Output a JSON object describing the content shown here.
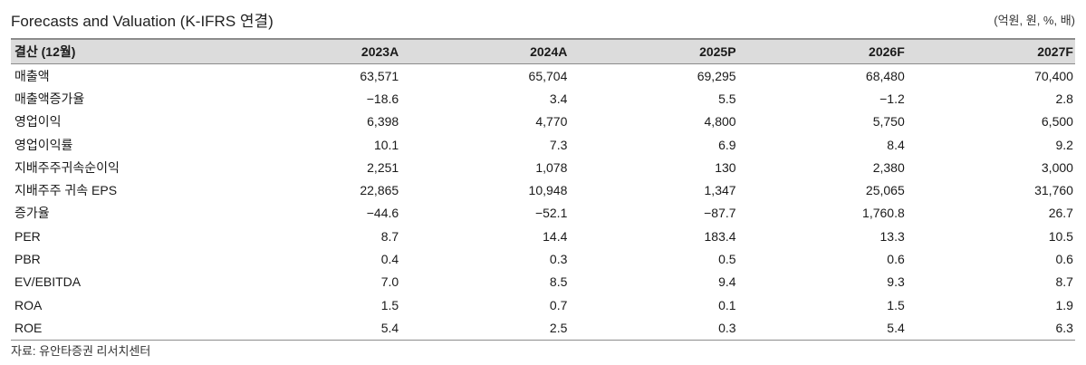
{
  "title": "Forecasts and Valuation (K-IFRS 연결)",
  "unit": "(억원, 원, %, 배)",
  "table": {
    "header": [
      "결산 (12월)",
      "2023A",
      "2024A",
      "2025P",
      "2026F",
      "2027F"
    ],
    "rows": [
      {
        "label": "매출액",
        "values": [
          "63,571",
          "65,704",
          "69,295",
          "68,480",
          "70,400"
        ]
      },
      {
        "label": "매출액증가율",
        "values": [
          "−18.6",
          "3.4",
          "5.5",
          "−1.2",
          "2.8"
        ]
      },
      {
        "label": "영업이익",
        "values": [
          "6,398",
          "4,770",
          "4,800",
          "5,750",
          "6,500"
        ]
      },
      {
        "label": "영업이익률",
        "values": [
          "10.1",
          "7.3",
          "6.9",
          "8.4",
          "9.2"
        ]
      },
      {
        "label": "지배주주귀속순이익",
        "values": [
          "2,251",
          "1,078",
          "130",
          "2,380",
          "3,000"
        ]
      },
      {
        "label": "지배주주 귀속 EPS",
        "values": [
          "22,865",
          "10,948",
          "1,347",
          "25,065",
          "31,760"
        ]
      },
      {
        "label": "증가율",
        "values": [
          "−44.6",
          "−52.1",
          "−87.7",
          "1,760.8",
          "26.7"
        ]
      },
      {
        "label": "PER",
        "values": [
          "8.7",
          "14.4",
          "183.4",
          "13.3",
          "10.5"
        ]
      },
      {
        "label": "PBR",
        "values": [
          "0.4",
          "0.3",
          "0.5",
          "0.6",
          "0.6"
        ]
      },
      {
        "label": "EV/EBITDA",
        "values": [
          "7.0",
          "8.5",
          "9.4",
          "9.3",
          "8.7"
        ]
      },
      {
        "label": "ROA",
        "values": [
          "1.5",
          "0.7",
          "0.1",
          "1.5",
          "1.9"
        ]
      },
      {
        "label": "ROE",
        "values": [
          "5.4",
          "2.5",
          "0.3",
          "5.4",
          "6.3"
        ]
      }
    ]
  },
  "source": "자료: 유안타증권 리서치센터"
}
